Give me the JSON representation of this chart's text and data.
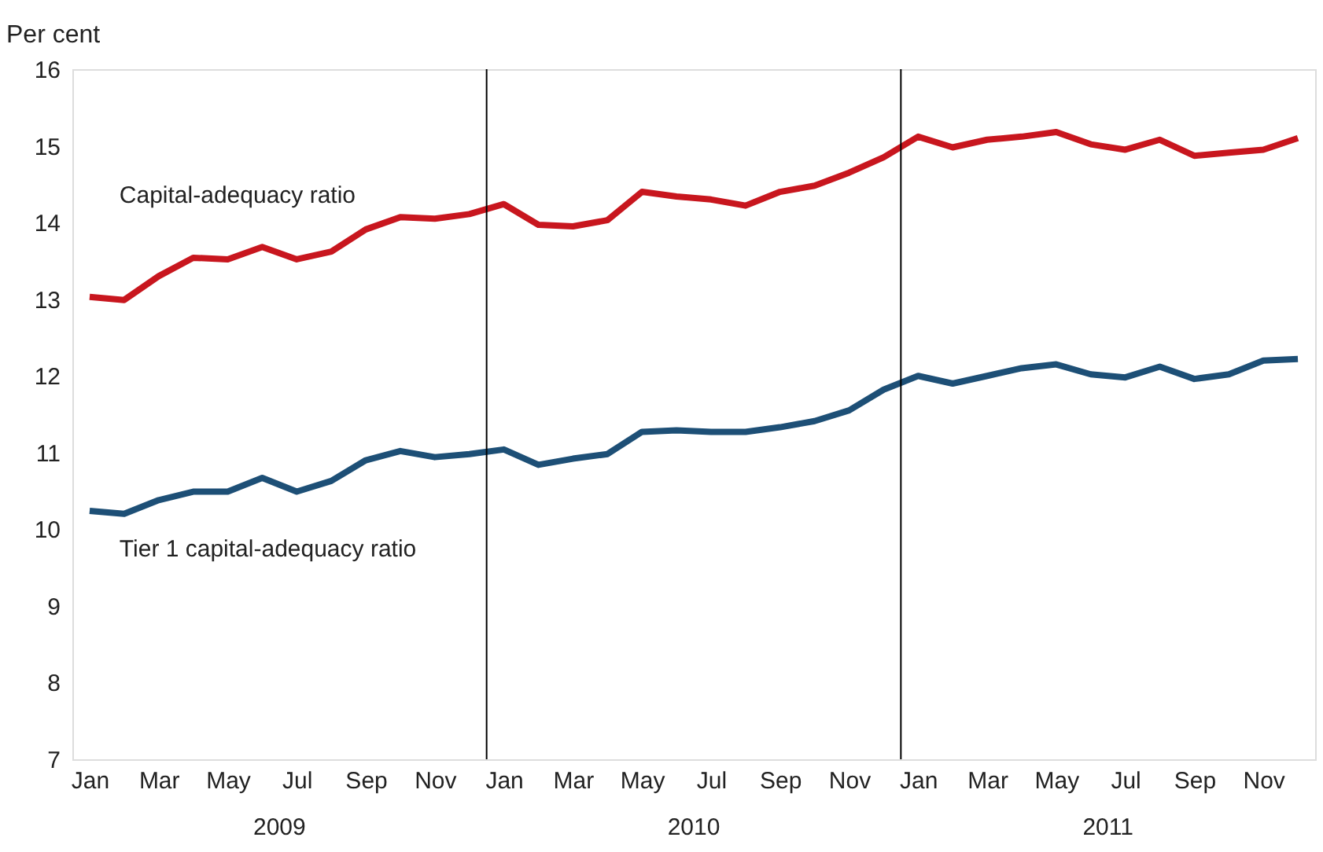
{
  "chart_data": {
    "type": "line",
    "ylabel": "Per cent",
    "categories": [
      "Jan",
      null,
      "Mar",
      null,
      "May",
      null,
      "Jul",
      null,
      "Sep",
      null,
      "Nov",
      null,
      "Jan",
      null,
      "Mar",
      null,
      "May",
      null,
      "Jul",
      null,
      "Sep",
      null,
      "Nov",
      null,
      "Jan",
      null,
      "Mar",
      null,
      "May",
      null,
      "Jul",
      null,
      "Sep",
      null,
      "Nov",
      null
    ],
    "series": [
      {
        "name": "Capital-adequacy ratio",
        "color": "#c8161e",
        "values": [
          13.03,
          12.99,
          13.3,
          13.54,
          13.52,
          13.68,
          13.52,
          13.62,
          13.91,
          14.07,
          14.05,
          14.11,
          14.24,
          13.97,
          13.95,
          14.03,
          14.4,
          14.34,
          14.3,
          14.22,
          14.4,
          14.48,
          14.65,
          14.85,
          15.12,
          14.98,
          15.08,
          15.12,
          15.18,
          15.02,
          14.95,
          15.08,
          14.87,
          14.91,
          14.95,
          15.1
        ]
      },
      {
        "name": "Tier 1 capital-adequacy ratio",
        "color": "#1d4f76",
        "values": [
          10.24,
          10.2,
          10.38,
          10.49,
          10.49,
          10.67,
          10.49,
          10.63,
          10.9,
          11.02,
          10.94,
          10.98,
          11.04,
          10.84,
          10.92,
          10.98,
          11.27,
          11.29,
          11.27,
          11.27,
          11.33,
          11.41,
          11.55,
          11.82,
          12.0,
          11.9,
          12.0,
          12.1,
          12.15,
          12.02,
          11.98,
          12.12,
          11.96,
          12.02,
          12.2,
          12.22
        ]
      }
    ],
    "annotations": [
      "2009",
      "2010",
      "2011"
    ],
    "ylim": [
      7,
      16
    ],
    "yticks": [
      7,
      8,
      9,
      10,
      11,
      12,
      13,
      14,
      15,
      16
    ],
    "grid": false,
    "legend": false,
    "marker": "none",
    "line_style": "solid"
  }
}
